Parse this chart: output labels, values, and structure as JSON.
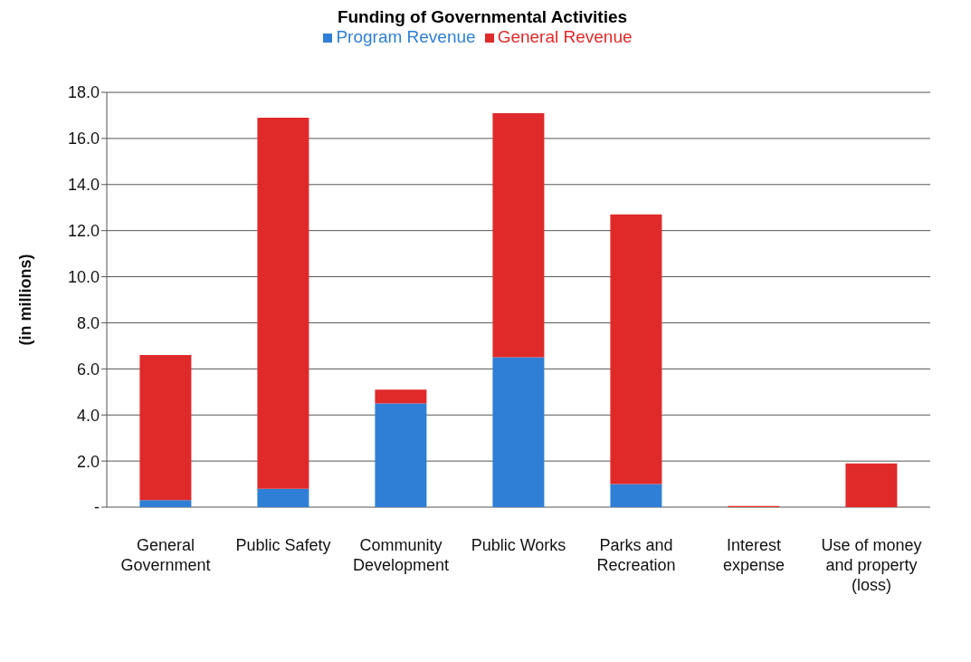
{
  "chart_data": {
    "type": "bar",
    "title": "Funding of Governmental Activities",
    "ylabel": "(in millions)",
    "categories": [
      "General Government",
      "Public Safety",
      "Community Development",
      "Public Works",
      "Parks and Recreation",
      "Interest expense",
      "Use of money and property (loss)"
    ],
    "series": [
      {
        "name": "Program Revenue",
        "color": "#2f7fd6",
        "values": [
          0.3,
          0.8,
          4.5,
          6.5,
          1.0,
          0,
          0
        ]
      },
      {
        "name": "General Revenue",
        "color": "#e02a2a",
        "values": [
          6.3,
          16.1,
          0.6,
          10.6,
          11.7,
          0.05,
          1.9
        ]
      }
    ],
    "stacked": true,
    "ylim": [
      0,
      18
    ],
    "yticks": [
      {
        "value": 0,
        "label": "-"
      },
      {
        "value": 2,
        "label": "2.0"
      },
      {
        "value": 4,
        "label": "4.0"
      },
      {
        "value": 6,
        "label": "6.0"
      },
      {
        "value": 8,
        "label": "8.0"
      },
      {
        "value": 10,
        "label": "10.0"
      },
      {
        "value": 12,
        "label": "12.0"
      },
      {
        "value": 14,
        "label": "14.0"
      },
      {
        "value": 16,
        "label": "16.0"
      },
      {
        "value": 18,
        "label": "18.0"
      }
    ],
    "grid": "y",
    "legend": "top"
  }
}
